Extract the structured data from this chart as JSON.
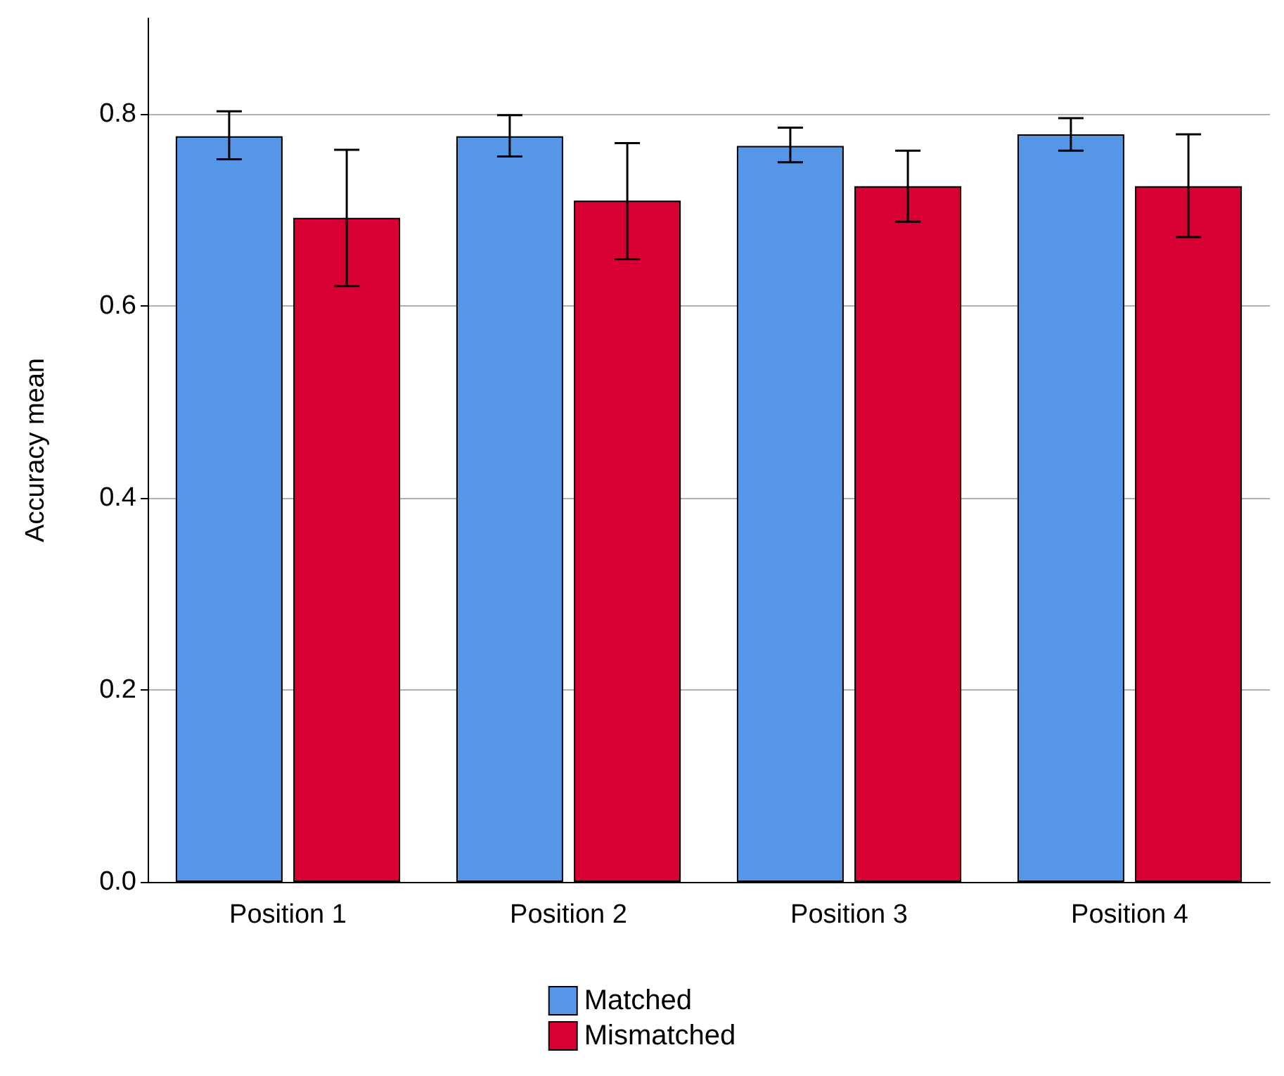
{
  "chart_data": {
    "type": "bar",
    "ylabel": "Accuracy mean",
    "categories": [
      "Position 1",
      "Position 2",
      "Position 3",
      "Position 4"
    ],
    "series": [
      {
        "name": "Matched",
        "color": "#5596e6",
        "values": [
          0.777,
          0.777,
          0.767,
          0.779
        ],
        "errors": [
          [
            0.753,
            0.803
          ],
          [
            0.756,
            0.799
          ],
          [
            0.75,
            0.786
          ],
          [
            0.762,
            0.796
          ]
        ]
      },
      {
        "name": "Mismatched",
        "color": "#d60032",
        "values": [
          0.692,
          0.71,
          0.725,
          0.725
        ],
        "errors": [
          [
            0.621,
            0.763
          ],
          [
            0.649,
            0.77
          ],
          [
            0.688,
            0.762
          ],
          [
            0.672,
            0.779
          ]
        ]
      }
    ],
    "ylim": [
      0,
      0.9
    ],
    "yticks": [
      {
        "value": 0,
        "label": "0.0"
      },
      {
        "value": 0.2,
        "label": "0.2"
      },
      {
        "value": 0.4,
        "label": "0.4"
      },
      {
        "value": 0.6,
        "label": "0.6"
      },
      {
        "value": 0.8,
        "label": "0.8"
      }
    ],
    "grid": "y",
    "legend": "bottom"
  }
}
